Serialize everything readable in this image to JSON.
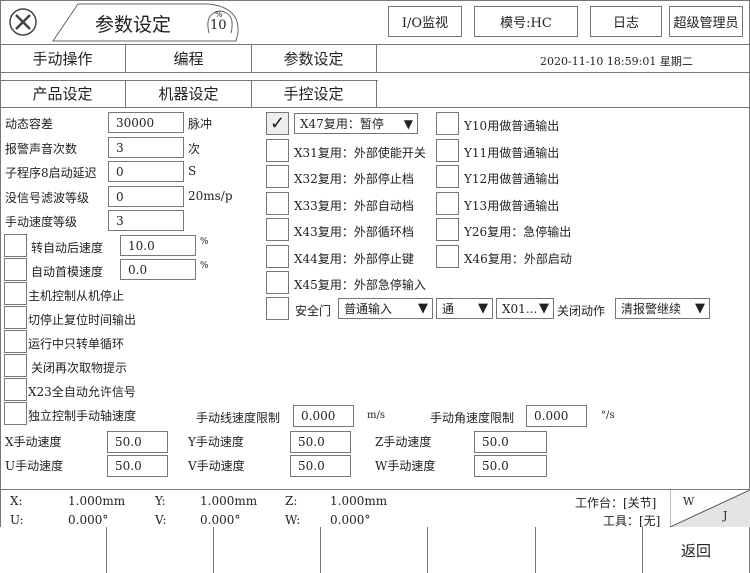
{
  "header": {
    "title": "参数设定",
    "gauge_unit": "%",
    "gauge_value": "10",
    "icon": "tools-icon",
    "buttons": [
      "I/O监视",
      "模号:HC",
      "日志",
      "超级管理员"
    ]
  },
  "tabs_row1": [
    "手动操作",
    "编程",
    "参数设定"
  ],
  "tabs_row2": [
    "产品设定",
    "机器设定",
    "手控设定"
  ],
  "datetime": "2020-11-10   18:59:01 星期二",
  "params": [
    {
      "label": "动态容差",
      "value": "30000",
      "unit": "脉冲"
    },
    {
      "label": "报警声音次数",
      "value": "3",
      "unit": "次"
    },
    {
      "label": "子程序8启动延迟",
      "value": "0",
      "unit": "S"
    },
    {
      "label": "没信号滤波等级",
      "value": "0",
      "unit": "20ms/p"
    },
    {
      "label": "手动速度等级",
      "value": "3",
      "unit": ""
    }
  ],
  "left_checks": [
    {
      "label": "转自动后速度",
      "value": "10.0",
      "unit": "%",
      "checked": false
    },
    {
      "label": "自动首模速度",
      "value": "0.0",
      "unit": "%",
      "checked": false
    },
    {
      "label": "主机控制从机停止",
      "checked": false
    },
    {
      "label": "切停止复位时间输出",
      "checked": false
    },
    {
      "label": "运行中只转单循环",
      "checked": false
    },
    {
      "label": "关闭再次取物提示",
      "checked": false
    },
    {
      "label": "X23全自动允许信号",
      "checked": false
    },
    {
      "label": "独立控制手动轴速度",
      "checked": false
    }
  ],
  "right_checks_a": [
    {
      "label": "X47复用：暂停",
      "checked": true,
      "dropdown": true
    },
    {
      "label": "X31复用：外部使能开关",
      "checked": false
    },
    {
      "label": "X32复用：外部停止档",
      "checked": false
    },
    {
      "label": "X33复用：外部自动档",
      "checked": false
    },
    {
      "label": "X43复用：外部循环档",
      "checked": false
    },
    {
      "label": "X44复用：外部停止键",
      "checked": false
    },
    {
      "label": "X45复用：外部急停输入",
      "checked": false
    }
  ],
  "right_checks_b": [
    {
      "label": "Y10用做普通输出",
      "checked": false
    },
    {
      "label": "Y11用做普通输出",
      "checked": false
    },
    {
      "label": "Y12用做普通输出",
      "checked": false
    },
    {
      "label": "Y13用做普通输出",
      "checked": false
    },
    {
      "label": "Y26复用：急停输出",
      "checked": false
    },
    {
      "label": "X46复用：外部启动",
      "checked": false
    }
  ],
  "safety_door": {
    "label": "安全门",
    "checked": false,
    "mode": "普通输入",
    "state": "通",
    "input": "X01...",
    "close_label": "关闭动作",
    "close_action": "清报警继续"
  },
  "limits": {
    "line_label": "手动线速度限制",
    "line_value": "0.000",
    "line_unit": "m/s",
    "angle_label": "手动角速度限制",
    "angle_value": "0.000",
    "angle_unit": "°/s"
  },
  "axis_speeds": [
    {
      "label": "X手动速度",
      "value": "50.0"
    },
    {
      "label": "Y手动速度",
      "value": "50.0"
    },
    {
      "label": "Z手动速度",
      "value": "50.0"
    },
    {
      "label": "U手动速度",
      "value": "50.0"
    },
    {
      "label": "V手动速度",
      "value": "50.0"
    },
    {
      "label": "W手动速度",
      "value": "50.0"
    }
  ],
  "status": {
    "coords": [
      {
        "axis": "X:",
        "value": "1.000mm"
      },
      {
        "axis": "Y:",
        "value": "1.000mm"
      },
      {
        "axis": "Z:",
        "value": "1.000mm"
      },
      {
        "axis": "U:",
        "value": "0.000°"
      },
      {
        "axis": "V:",
        "value": "0.000°"
      },
      {
        "axis": "W:",
        "value": "0.000°"
      }
    ],
    "workbench": "工作台：[关节]",
    "tool": "工具：[无]",
    "mode_w": "W",
    "mode_j": "J"
  },
  "footer": {
    "buttons": [
      "",
      "",
      "",
      "",
      "",
      "",
      "返回"
    ]
  }
}
